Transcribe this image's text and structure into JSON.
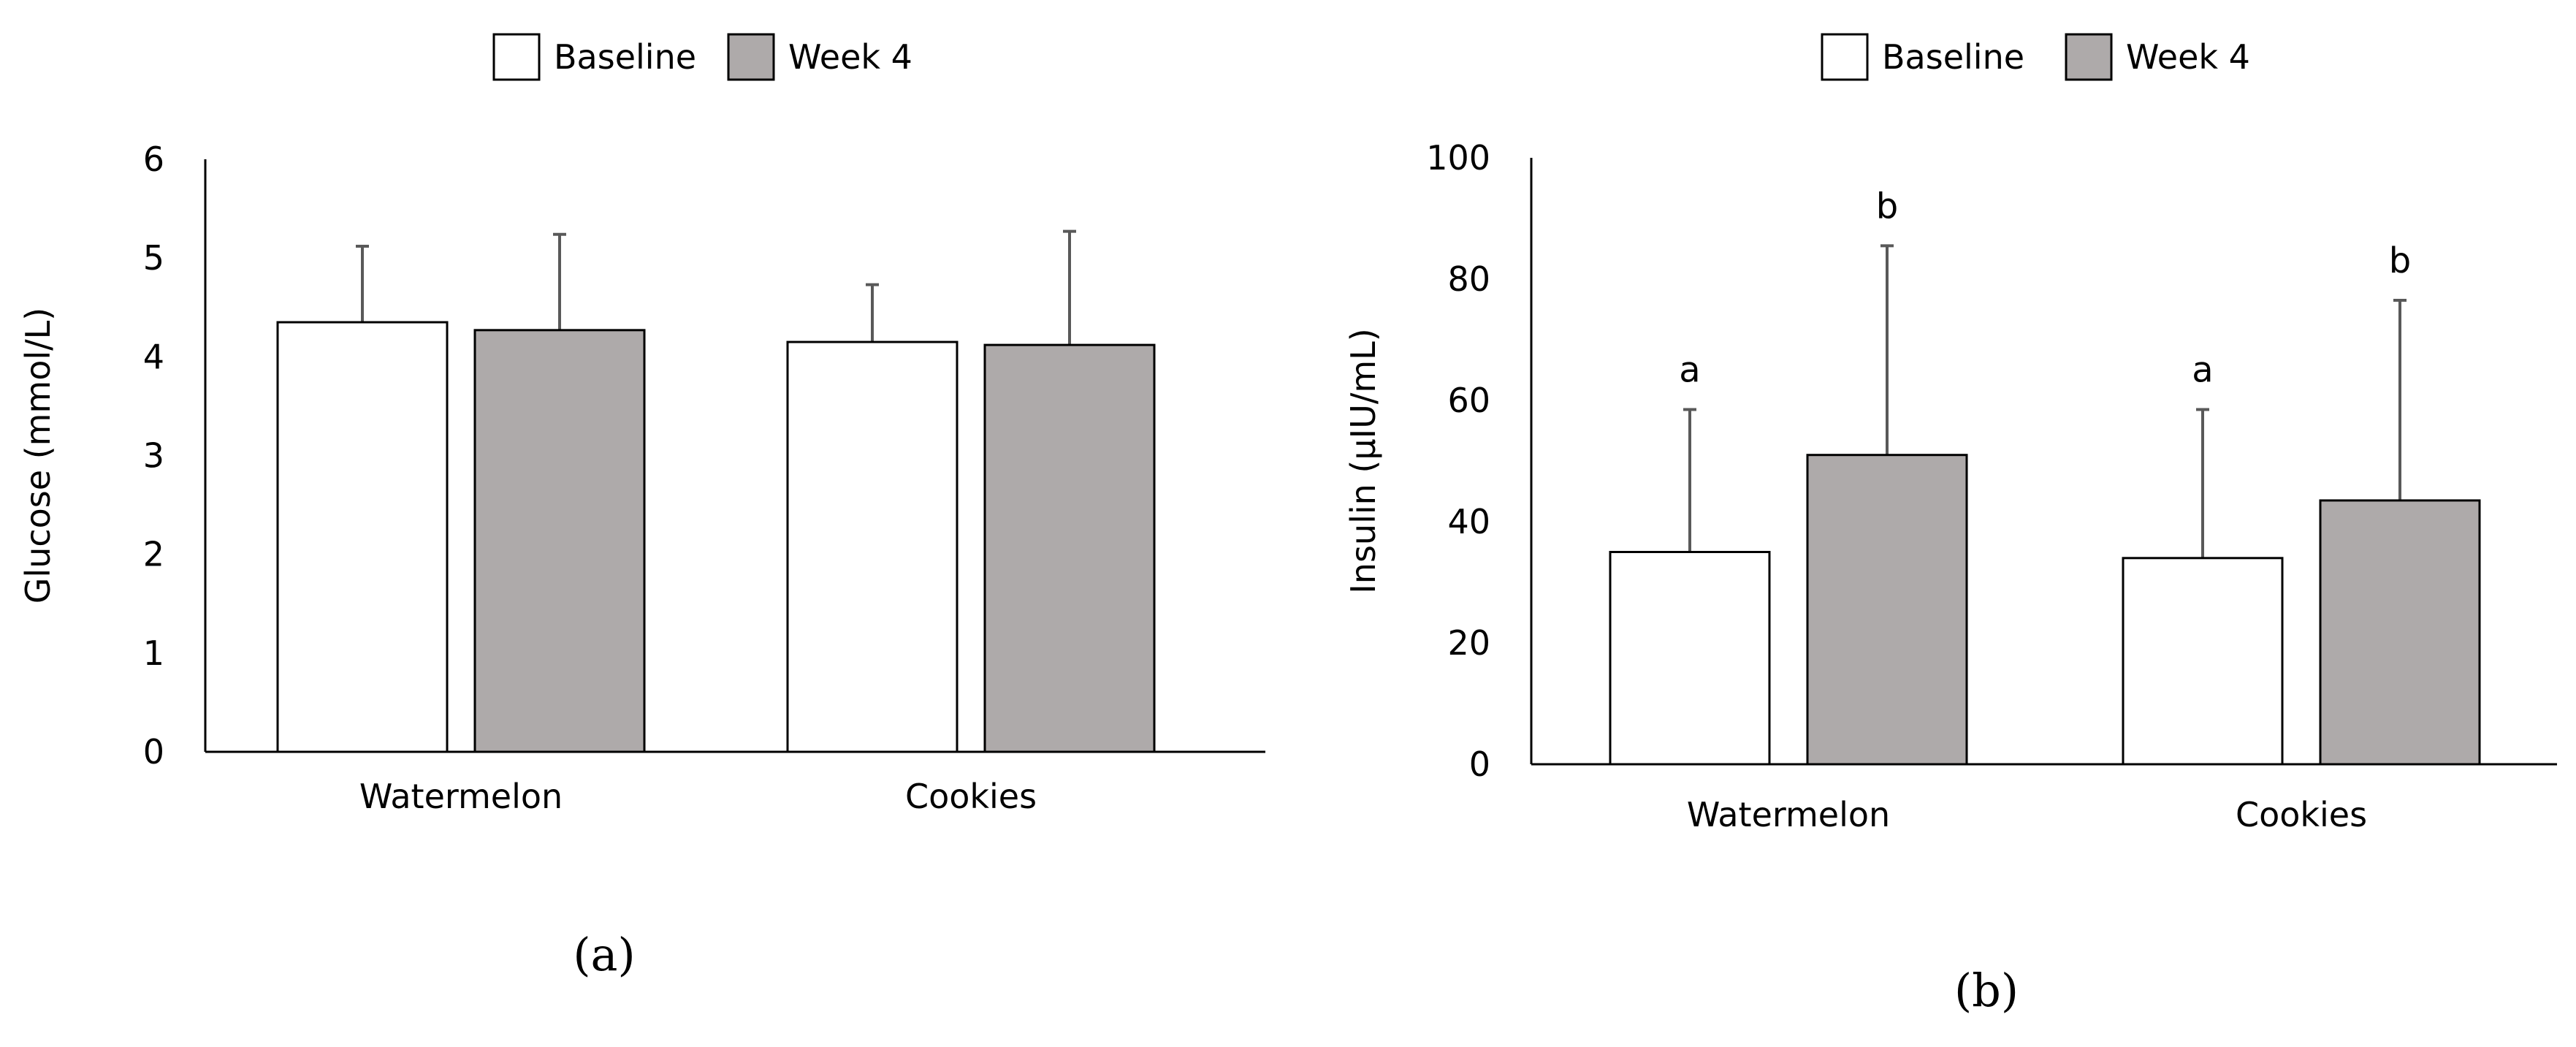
{
  "colors": {
    "baseline_fill": "#ffffff",
    "week4_fill": "#aeaaaa",
    "bar_stroke": "#000000",
    "axis": "#000000",
    "error_bar": "#595959",
    "text": "#000000"
  },
  "chart_data": [
    {
      "type": "bar",
      "panel_label": "(a)",
      "categories": [
        "Watermelon",
        "Cookies"
      ],
      "series": [
        {
          "name": "Baseline",
          "values": [
            4.35,
            4.15
          ],
          "errors": [
            0.77,
            0.58
          ]
        },
        {
          "name": "Week 4",
          "values": [
            4.27,
            4.12
          ],
          "errors": [
            0.97,
            1.15
          ]
        }
      ],
      "legend": [
        "Baseline",
        "Week 4"
      ],
      "legend_position": "top-center",
      "title": "",
      "xlabel": "",
      "ylabel": "Glucose (mmol/L)",
      "ylim": [
        0,
        6
      ],
      "yticks": [
        0,
        1,
        2,
        3,
        4,
        5,
        6
      ],
      "ytick_labels": [
        "0",
        "1",
        "2",
        "3",
        "4",
        "5",
        "6"
      ],
      "annotations": [],
      "grid": false
    },
    {
      "type": "bar",
      "panel_label": "(b)",
      "categories": [
        "Watermelon",
        "Cookies"
      ],
      "series": [
        {
          "name": "Baseline",
          "values": [
            35,
            34
          ],
          "errors": [
            23.5,
            24.5
          ]
        },
        {
          "name": "Week 4",
          "values": [
            51,
            43.5
          ],
          "errors": [
            34.5,
            33
          ]
        }
      ],
      "legend": [
        "Baseline",
        "Week 4"
      ],
      "legend_position": "top-center",
      "title": "",
      "xlabel": "",
      "ylabel": "Insulin (µIU/mL)",
      "ylim": [
        0,
        100
      ],
      "yticks": [
        0,
        20,
        40,
        60,
        80,
        100
      ],
      "ytick_labels": [
        "0",
        "20",
        "40",
        "60",
        "80",
        "100"
      ],
      "annotations": [
        [
          "a",
          "b"
        ],
        [
          "a",
          "b"
        ]
      ],
      "grid": false
    }
  ]
}
